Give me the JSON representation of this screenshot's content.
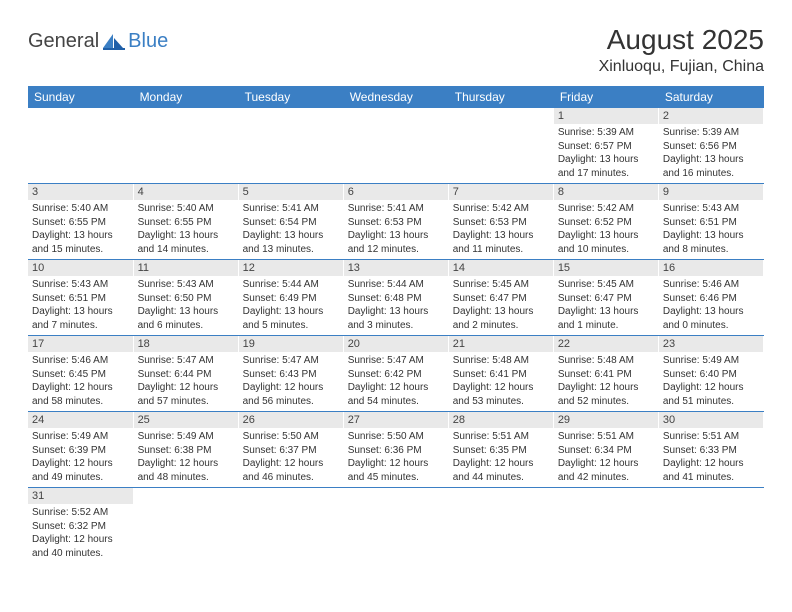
{
  "brand": {
    "first": "General",
    "second": "Blue"
  },
  "title": "August 2025",
  "location": "Xinluoqu, Fujian, China",
  "colors": {
    "accent": "#3b7fc4",
    "daybg": "#e9e9e9",
    "text": "#333333"
  },
  "weekdays": [
    "Sunday",
    "Monday",
    "Tuesday",
    "Wednesday",
    "Thursday",
    "Friday",
    "Saturday"
  ],
  "weeks": [
    [
      null,
      null,
      null,
      null,
      null,
      {
        "n": "1",
        "sr": "Sunrise: 5:39 AM",
        "ss": "Sunset: 6:57 PM",
        "d1": "Daylight: 13 hours",
        "d2": "and 17 minutes."
      },
      {
        "n": "2",
        "sr": "Sunrise: 5:39 AM",
        "ss": "Sunset: 6:56 PM",
        "d1": "Daylight: 13 hours",
        "d2": "and 16 minutes."
      }
    ],
    [
      {
        "n": "3",
        "sr": "Sunrise: 5:40 AM",
        "ss": "Sunset: 6:55 PM",
        "d1": "Daylight: 13 hours",
        "d2": "and 15 minutes."
      },
      {
        "n": "4",
        "sr": "Sunrise: 5:40 AM",
        "ss": "Sunset: 6:55 PM",
        "d1": "Daylight: 13 hours",
        "d2": "and 14 minutes."
      },
      {
        "n": "5",
        "sr": "Sunrise: 5:41 AM",
        "ss": "Sunset: 6:54 PM",
        "d1": "Daylight: 13 hours",
        "d2": "and 13 minutes."
      },
      {
        "n": "6",
        "sr": "Sunrise: 5:41 AM",
        "ss": "Sunset: 6:53 PM",
        "d1": "Daylight: 13 hours",
        "d2": "and 12 minutes."
      },
      {
        "n": "7",
        "sr": "Sunrise: 5:42 AM",
        "ss": "Sunset: 6:53 PM",
        "d1": "Daylight: 13 hours",
        "d2": "and 11 minutes."
      },
      {
        "n": "8",
        "sr": "Sunrise: 5:42 AM",
        "ss": "Sunset: 6:52 PM",
        "d1": "Daylight: 13 hours",
        "d2": "and 10 minutes."
      },
      {
        "n": "9",
        "sr": "Sunrise: 5:43 AM",
        "ss": "Sunset: 6:51 PM",
        "d1": "Daylight: 13 hours",
        "d2": "and 8 minutes."
      }
    ],
    [
      {
        "n": "10",
        "sr": "Sunrise: 5:43 AM",
        "ss": "Sunset: 6:51 PM",
        "d1": "Daylight: 13 hours",
        "d2": "and 7 minutes."
      },
      {
        "n": "11",
        "sr": "Sunrise: 5:43 AM",
        "ss": "Sunset: 6:50 PM",
        "d1": "Daylight: 13 hours",
        "d2": "and 6 minutes."
      },
      {
        "n": "12",
        "sr": "Sunrise: 5:44 AM",
        "ss": "Sunset: 6:49 PM",
        "d1": "Daylight: 13 hours",
        "d2": "and 5 minutes."
      },
      {
        "n": "13",
        "sr": "Sunrise: 5:44 AM",
        "ss": "Sunset: 6:48 PM",
        "d1": "Daylight: 13 hours",
        "d2": "and 3 minutes."
      },
      {
        "n": "14",
        "sr": "Sunrise: 5:45 AM",
        "ss": "Sunset: 6:47 PM",
        "d1": "Daylight: 13 hours",
        "d2": "and 2 minutes."
      },
      {
        "n": "15",
        "sr": "Sunrise: 5:45 AM",
        "ss": "Sunset: 6:47 PM",
        "d1": "Daylight: 13 hours",
        "d2": "and 1 minute."
      },
      {
        "n": "16",
        "sr": "Sunrise: 5:46 AM",
        "ss": "Sunset: 6:46 PM",
        "d1": "Daylight: 13 hours",
        "d2": "and 0 minutes."
      }
    ],
    [
      {
        "n": "17",
        "sr": "Sunrise: 5:46 AM",
        "ss": "Sunset: 6:45 PM",
        "d1": "Daylight: 12 hours",
        "d2": "and 58 minutes."
      },
      {
        "n": "18",
        "sr": "Sunrise: 5:47 AM",
        "ss": "Sunset: 6:44 PM",
        "d1": "Daylight: 12 hours",
        "d2": "and 57 minutes."
      },
      {
        "n": "19",
        "sr": "Sunrise: 5:47 AM",
        "ss": "Sunset: 6:43 PM",
        "d1": "Daylight: 12 hours",
        "d2": "and 56 minutes."
      },
      {
        "n": "20",
        "sr": "Sunrise: 5:47 AM",
        "ss": "Sunset: 6:42 PM",
        "d1": "Daylight: 12 hours",
        "d2": "and 54 minutes."
      },
      {
        "n": "21",
        "sr": "Sunrise: 5:48 AM",
        "ss": "Sunset: 6:41 PM",
        "d1": "Daylight: 12 hours",
        "d2": "and 53 minutes."
      },
      {
        "n": "22",
        "sr": "Sunrise: 5:48 AM",
        "ss": "Sunset: 6:41 PM",
        "d1": "Daylight: 12 hours",
        "d2": "and 52 minutes."
      },
      {
        "n": "23",
        "sr": "Sunrise: 5:49 AM",
        "ss": "Sunset: 6:40 PM",
        "d1": "Daylight: 12 hours",
        "d2": "and 51 minutes."
      }
    ],
    [
      {
        "n": "24",
        "sr": "Sunrise: 5:49 AM",
        "ss": "Sunset: 6:39 PM",
        "d1": "Daylight: 12 hours",
        "d2": "and 49 minutes."
      },
      {
        "n": "25",
        "sr": "Sunrise: 5:49 AM",
        "ss": "Sunset: 6:38 PM",
        "d1": "Daylight: 12 hours",
        "d2": "and 48 minutes."
      },
      {
        "n": "26",
        "sr": "Sunrise: 5:50 AM",
        "ss": "Sunset: 6:37 PM",
        "d1": "Daylight: 12 hours",
        "d2": "and 46 minutes."
      },
      {
        "n": "27",
        "sr": "Sunrise: 5:50 AM",
        "ss": "Sunset: 6:36 PM",
        "d1": "Daylight: 12 hours",
        "d2": "and 45 minutes."
      },
      {
        "n": "28",
        "sr": "Sunrise: 5:51 AM",
        "ss": "Sunset: 6:35 PM",
        "d1": "Daylight: 12 hours",
        "d2": "and 44 minutes."
      },
      {
        "n": "29",
        "sr": "Sunrise: 5:51 AM",
        "ss": "Sunset: 6:34 PM",
        "d1": "Daylight: 12 hours",
        "d2": "and 42 minutes."
      },
      {
        "n": "30",
        "sr": "Sunrise: 5:51 AM",
        "ss": "Sunset: 6:33 PM",
        "d1": "Daylight: 12 hours",
        "d2": "and 41 minutes."
      }
    ],
    [
      {
        "n": "31",
        "sr": "Sunrise: 5:52 AM",
        "ss": "Sunset: 6:32 PM",
        "d1": "Daylight: 12 hours",
        "d2": "and 40 minutes."
      },
      null,
      null,
      null,
      null,
      null,
      null
    ]
  ]
}
